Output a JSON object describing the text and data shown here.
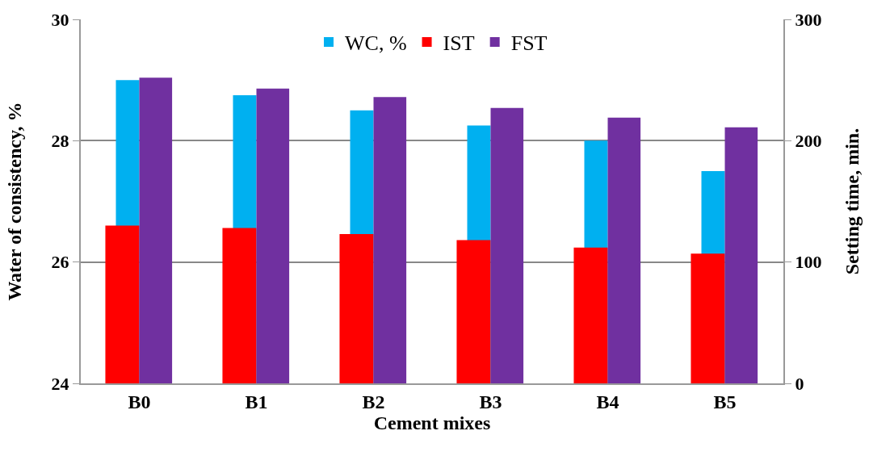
{
  "chart_data": {
    "type": "bar",
    "xlabel": "Cement mixes",
    "ylabel": "Water of consistency, %",
    "y2label": "Setting time, min.",
    "categories": [
      "B0",
      "B1",
      "B2",
      "B3",
      "B4",
      "B5"
    ],
    "series": [
      {
        "name": "WC, %",
        "color": "#00b0f0",
        "values": [
          29.0,
          28.75,
          28.5,
          28.25,
          28.0,
          27.5
        ]
      },
      {
        "name": "IST",
        "color": "#ff0000",
        "axis": "y2",
        "values": [
          130,
          128,
          123,
          118,
          112,
          107
        ]
      },
      {
        "name": "FST",
        "color": "#7030a0",
        "axis": "y2",
        "values": [
          252,
          243,
          236,
          227,
          219,
          211
        ]
      }
    ],
    "ylim": [
      24,
      30
    ],
    "yticks": [
      24,
      26,
      28,
      30
    ],
    "y2lim": [
      0,
      300
    ],
    "y2ticks": [
      0,
      100,
      200,
      300
    ],
    "grid": "y",
    "legend": "top"
  }
}
